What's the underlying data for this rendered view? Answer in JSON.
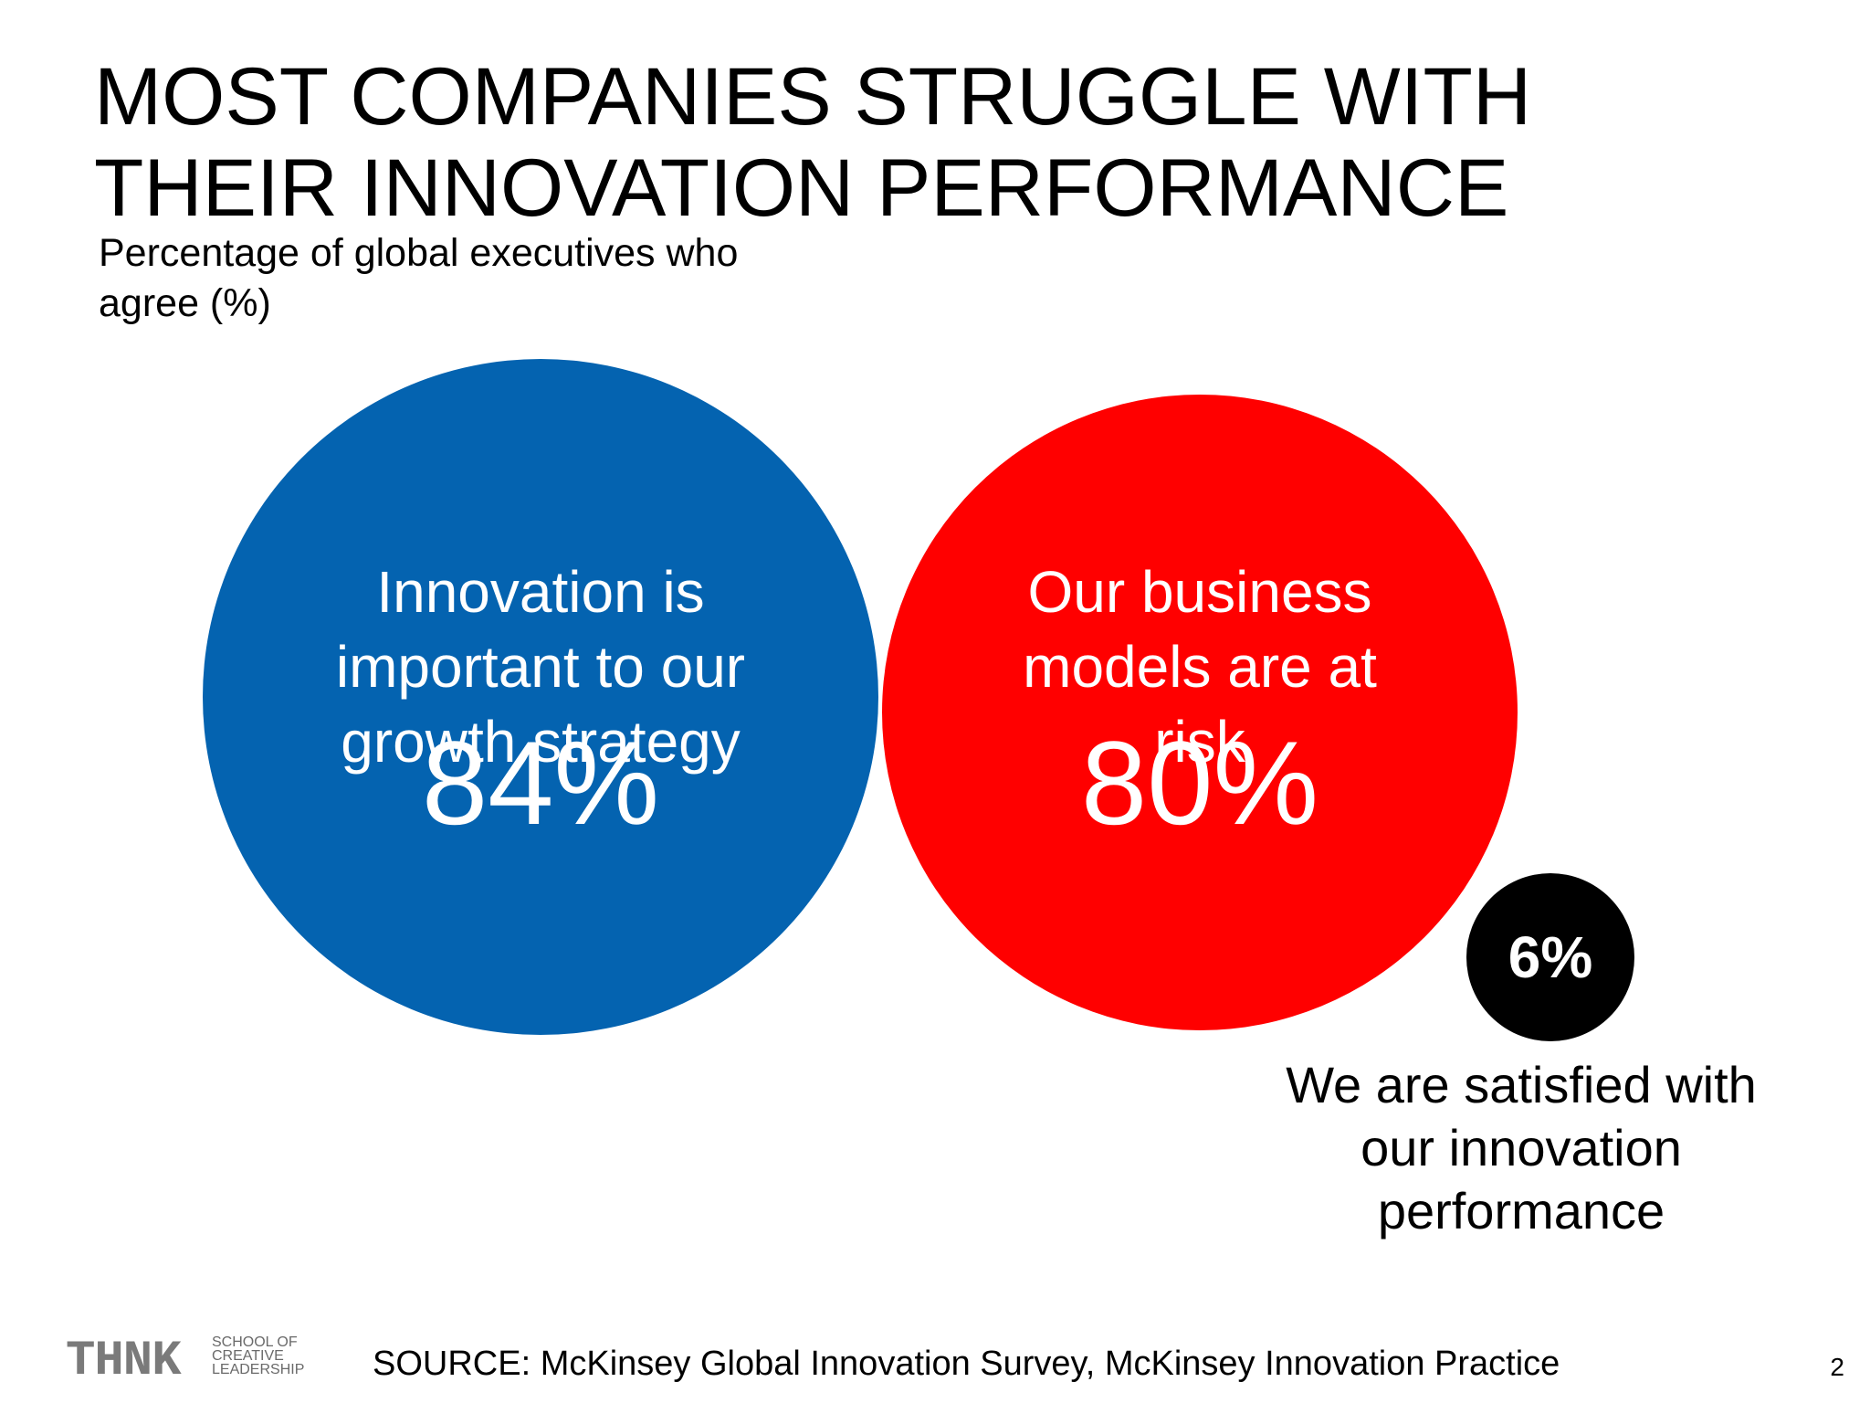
{
  "slide": {
    "title_lines": [
      "MOST COMPANIES STRUGGLE WITH",
      "THEIR INNOVATION PERFORMANCE"
    ],
    "subtitle_lines": [
      "Percentage of global executives who",
      "agree (%)"
    ],
    "source": "SOURCE: McKinsey Global Innovation Survey, McKinsey Innovation Practice",
    "page_number": "2"
  },
  "logo": {
    "wordmark": "THNK",
    "tagline_lines": [
      "SCHOOL OF",
      "CREATIVE",
      "LEADERSHIP"
    ]
  },
  "chart_data": {
    "type": "bubble",
    "unit": "%",
    "series": [
      {
        "value": 84,
        "value_label": "84%",
        "label_lines": [
          "Innovation is",
          "important to our",
          "growth strategy"
        ],
        "color": "#0463B0",
        "text_color": "#ffffff",
        "label_placement": "inside"
      },
      {
        "value": 80,
        "value_label": "80%",
        "label_lines": [
          "Our business",
          "models are at",
          "risk"
        ],
        "color": "#FF0000",
        "text_color": "#ffffff",
        "label_placement": "inside"
      },
      {
        "value": 6,
        "value_label": "6%",
        "label_lines": [
          "We are satisfied with",
          "our innovation",
          "performance"
        ],
        "color": "#000000",
        "text_color": "#ffffff",
        "label_placement": "below"
      }
    ]
  }
}
